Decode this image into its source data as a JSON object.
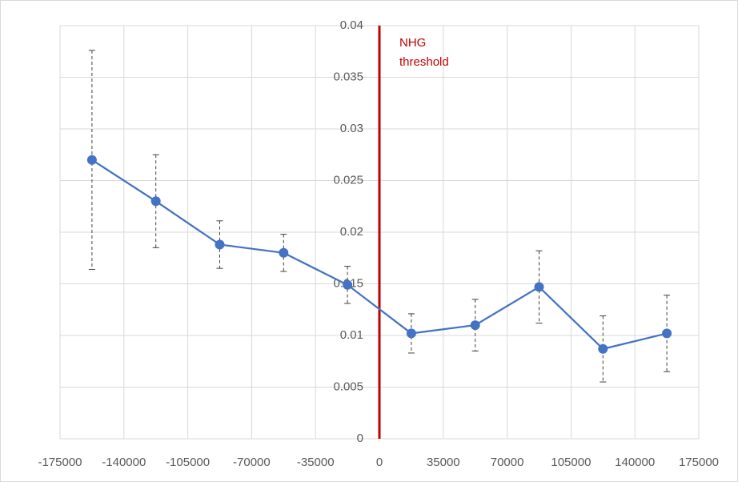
{
  "chart_data": {
    "type": "line",
    "x": [
      -157500,
      -122500,
      -87500,
      -52500,
      -17500,
      17500,
      52500,
      87500,
      122500,
      157500
    ],
    "series": [
      {
        "color": "#4472c4",
        "values": [
          0.027,
          0.023,
          0.0188,
          0.018,
          0.0149,
          0.0102,
          0.011,
          0.0147,
          0.0087,
          0.0102
        ],
        "errors": [
          0.0106,
          0.0045,
          0.0023,
          0.0018,
          0.0018,
          0.0019,
          0.0025,
          0.0035,
          0.0032,
          0.0037
        ]
      }
    ],
    "xlim": [
      -175000,
      175000
    ],
    "xticks": [
      -175000,
      -140000,
      -105000,
      -70000,
      -35000,
      0,
      35000,
      70000,
      105000,
      140000,
      175000
    ],
    "ylim": [
      0,
      0.04
    ],
    "yticks": [
      0,
      0.005,
      0.01,
      0.015,
      0.02,
      0.025,
      0.03,
      0.035,
      0.04
    ],
    "grid": true,
    "threshold": {
      "x": 0,
      "color": "#c00000",
      "label_lines": [
        "NHG",
        "threshold"
      ]
    }
  }
}
